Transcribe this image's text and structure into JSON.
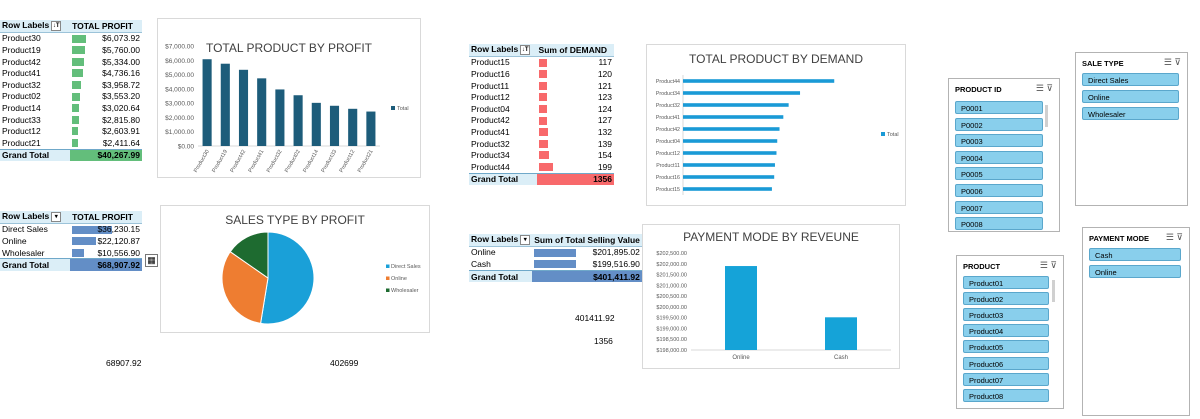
{
  "colors": {
    "profit_bar": "#1d5c7a",
    "demand_bar": "#1a9ad6",
    "revenue_bar": "#15a3d8",
    "databar_green": "#63be7b",
    "databar_red": "#f8696b",
    "databar_blue": "#638ec6",
    "pie_direct": "#1aa0d8",
    "pie_online": "#ee7d31",
    "pie_wholesaler": "#1e6b30"
  },
  "pivot_profit": {
    "header_labels": "Row Labels",
    "header_filter": "↓T",
    "header_value": "TOTAL PROFIT",
    "rows": [
      {
        "label": "Product30",
        "value": "$6,073.92",
        "v": 6073.92
      },
      {
        "label": "Product19",
        "value": "$5,760.00",
        "v": 5760.0
      },
      {
        "label": "Product42",
        "value": "$5,334.00",
        "v": 5334.0
      },
      {
        "label": "Product41",
        "value": "$4,736.16",
        "v": 4736.16
      },
      {
        "label": "Product32",
        "value": "$3,958.72",
        "v": 3958.72
      },
      {
        "label": "Product02",
        "value": "$3,553.20",
        "v": 3553.2
      },
      {
        "label": "Product14",
        "value": "$3,020.64",
        "v": 3020.64
      },
      {
        "label": "Product33",
        "value": "$2,815.80",
        "v": 2815.8
      },
      {
        "label": "Product12",
        "value": "$2,603.91",
        "v": 2603.91
      },
      {
        "label": "Product21",
        "value": "$2,411.64",
        "v": 2411.64
      }
    ],
    "total_label": "Grand Total",
    "total_value": "$40,267.99"
  },
  "pivot_sales": {
    "header_labels": "Row Labels",
    "header_filter": "▾",
    "header_value": "TOTAL PROFIT",
    "rows": [
      {
        "label": "Direct Sales",
        "value": "$36,230.15",
        "v": 36230.15
      },
      {
        "label": "Online",
        "value": "$22,120.87",
        "v": 22120.87
      },
      {
        "label": "Wholesaler",
        "value": "$10,556.90",
        "v": 10556.9
      }
    ],
    "total_label": "Grand Total",
    "total_value": "$68,907.92"
  },
  "pivot_demand": {
    "header_labels": "Row Labels",
    "header_filter": "↓T",
    "header_value": "Sum of DEMAND",
    "rows": [
      {
        "label": "Product15",
        "value": "117",
        "v": 117
      },
      {
        "label": "Product16",
        "value": "120",
        "v": 120
      },
      {
        "label": "Product11",
        "value": "121",
        "v": 121
      },
      {
        "label": "Product12",
        "value": "123",
        "v": 123
      },
      {
        "label": "Product04",
        "value": "124",
        "v": 124
      },
      {
        "label": "Product42",
        "value": "127",
        "v": 127
      },
      {
        "label": "Product41",
        "value": "132",
        "v": 132
      },
      {
        "label": "Product32",
        "value": "139",
        "v": 139
      },
      {
        "label": "Product34",
        "value": "154",
        "v": 154
      },
      {
        "label": "Product44",
        "value": "199",
        "v": 199
      }
    ],
    "total_label": "Grand Total",
    "total_value": "1356"
  },
  "pivot_payment": {
    "header_labels": "Row Labels",
    "header_filter": "▾",
    "header_value": "Sum of Total Selling Value",
    "rows": [
      {
        "label": "Online",
        "value": "$201,895.02",
        "v": 201895.02
      },
      {
        "label": "Cash",
        "value": "$199,516.90",
        "v": 199516.9
      }
    ],
    "total_label": "Grand Total",
    "total_value": "$401,411.92"
  },
  "loose_values": {
    "sales_total": "68907.92",
    "mid_value": "402699",
    "payment_total": "401411.92",
    "demand_total": "1356"
  },
  "chart_data": [
    {
      "type": "bar",
      "title": "TOTAL PRODUCT BY PROFIT",
      "xlabel": "",
      "ylabel": "",
      "categories": [
        "Product30",
        "Product19",
        "Product42",
        "Product41",
        "Product32",
        "Product02",
        "Product14",
        "Product33",
        "Product12",
        "Product21"
      ],
      "values": [
        6073.92,
        5760.0,
        5334.0,
        4736.16,
        3958.72,
        3553.2,
        3020.64,
        2815.8,
        2603.91,
        2411.64
      ],
      "ylim": [
        0,
        7000
      ],
      "yticks": [
        "$0.00",
        "$1,000.00",
        "$2,000.00",
        "$3,000.00",
        "$4,000.00",
        "$5,000.00",
        "$6,000.00",
        "$7,000.00"
      ],
      "legend": [
        "Total"
      ],
      "legend_position": "right"
    },
    {
      "type": "pie",
      "title": "SALES TYPE BY PROFIT",
      "categories": [
        "Direct Sales",
        "Online",
        "Wholesaler"
      ],
      "values": [
        36230.15,
        22120.87,
        10556.9
      ],
      "legend_position": "right"
    },
    {
      "type": "bar",
      "orientation": "horizontal",
      "title": "TOTAL PRODUCT BY DEMAND",
      "categories": [
        "Product44",
        "Product34",
        "Product32",
        "Product41",
        "Product42",
        "Product04",
        "Product12",
        "Product11",
        "Product16",
        "Product15"
      ],
      "values": [
        199,
        154,
        139,
        132,
        127,
        124,
        123,
        121,
        120,
        117
      ],
      "xlim": [
        0,
        250
      ],
      "legend": [
        "Total"
      ],
      "legend_position": "right"
    },
    {
      "type": "bar",
      "title": "PAYMENT MODE BY REVEUNE",
      "categories": [
        "Online",
        "Cash"
      ],
      "values": [
        201895.02,
        199516.9
      ],
      "ylim": [
        198000,
        202500
      ],
      "yticks": [
        "$198,000.00",
        "$198,500.00",
        "$199,000.00",
        "$199,500.00",
        "$200,000.00",
        "$200,500.00",
        "$201,000.00",
        "$201,500.00",
        "$202,000.00",
        "$202,500.00"
      ]
    }
  ],
  "slicers": {
    "product_id": {
      "title": "PRODUCT ID",
      "items": [
        "P0001",
        "P0002",
        "P0003",
        "P0004",
        "P0005",
        "P0006",
        "P0007",
        "P0008"
      ]
    },
    "sale_type": {
      "title": "SALE TYPE",
      "items": [
        "Direct Sales",
        "Online",
        "Wholesaler"
      ]
    },
    "payment_mode": {
      "title": "PAYMENT MODE",
      "items": [
        "Cash",
        "Online"
      ]
    },
    "product": {
      "title": "PRODUCT",
      "items": [
        "Product01",
        "Product02",
        "Product03",
        "Product04",
        "Product05",
        "Product06",
        "Product07",
        "Product08"
      ]
    },
    "icon_multiselect": "☰",
    "icon_clear": "⊽"
  },
  "misc": {
    "quick_analysis_icon": "▦"
  }
}
